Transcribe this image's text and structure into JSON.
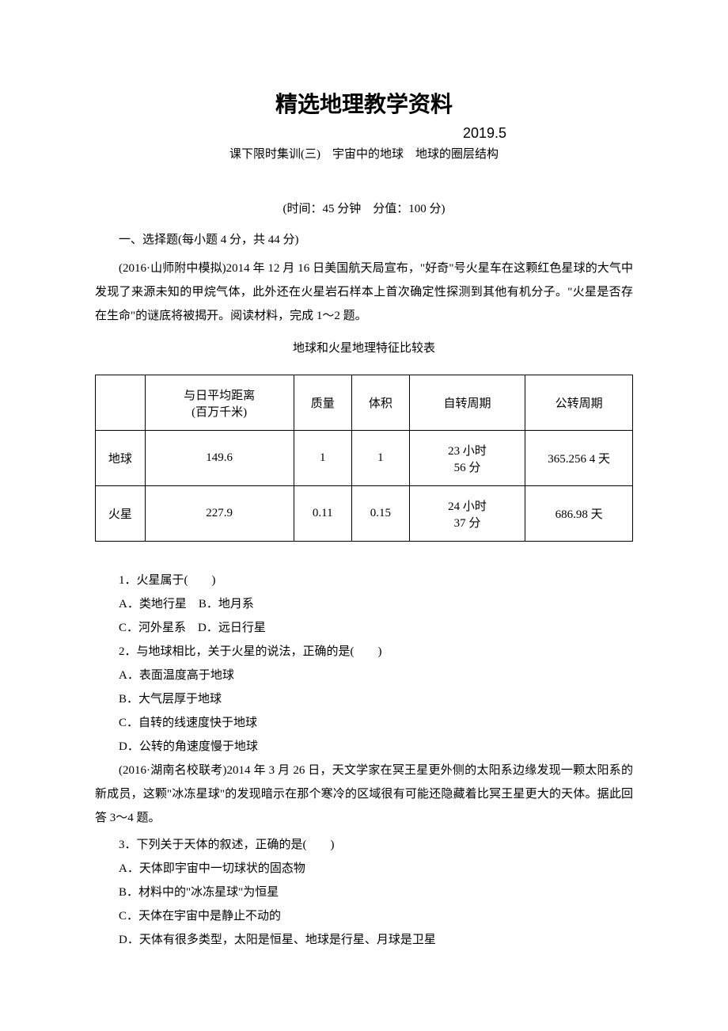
{
  "main_title": "精选地理教学资料",
  "date": "2019.5",
  "subtitle": "课下限时集训(三)　宇宙中的地球　地球的圈层结构",
  "meta_line": "(时间：45 分钟　分值：100 分)",
  "section_head": "一、选择题(每小题 4 分，共 44 分)",
  "intro_para": "(2016·山师附中模拟)2014 年 12 月 16 日美国航天局宣布，\"好奇\"号火星车在这颗红色星球的大气中发现了来源未知的甲烷气体，此外还在火星岩石样本上首次确定性探测到其他有机分子。\"火星是否存在生命\"的谜底将被揭开。阅读材料，完成 1～2 题。",
  "table_caption": "地球和火星地理特征比较表",
  "table": {
    "columns": [
      "",
      "与日平均距离\n(百万千米)",
      "质量",
      "体积",
      "自转周期",
      "公转周期"
    ],
    "rows": [
      [
        "地球",
        "149.6",
        "1",
        "1",
        "23 小时\n56 分",
        "365.256 4 天"
      ],
      [
        "火星",
        "227.9",
        "0.11",
        "0.15",
        "24 小时\n37 分",
        "686.98 天"
      ]
    ],
    "column_widths": [
      "col-name",
      "col-dist",
      "col-mass",
      "col-vol",
      "col-rot",
      "col-rev"
    ],
    "border_color": "#000000",
    "font_size": 15
  },
  "q1": {
    "stem": "1．火星属于(　　)",
    "opt_a": "A．类地行星　B．地月系",
    "opt_c": "C．河外星系　D．远日行星"
  },
  "q2": {
    "stem": "2．与地球相比，关于火星的说法，正确的是(　　)",
    "opt_a": "A．表面温度高于地球",
    "opt_b": "B．大气层厚于地球",
    "opt_c": "C．自转的线速度快于地球",
    "opt_d": "D．公转的角速度慢于地球"
  },
  "para2": "(2016·湖南名校联考)2014 年 3 月 26 日，天文学家在冥王星更外侧的太阳系边缘发现一颗太阳系的新成员，这颗\"冰冻星球\"的发现暗示在那个寒冷的区域很有可能还隐藏着比冥王星更大的天体。据此回答 3～4 题。",
  "q3": {
    "stem": "3．下列关于天体的叙述，正确的是(　　)",
    "opt_a": "A．天体即宇宙中一切球状的固态物",
    "opt_b": "B．材料中的\"冰冻星球\"为恒星",
    "opt_c": "C．天体在宇宙中是静止不动的",
    "opt_d": "D．天体有很多类型，太阳是恒星、地球是行星、月球是卫星"
  },
  "styles": {
    "background_color": "#ffffff",
    "text_color": "#000000",
    "body_font": "SimSun",
    "title_font": "SimHei",
    "title_fontsize": 28,
    "body_fontsize": 15,
    "line_height": 2.0
  }
}
